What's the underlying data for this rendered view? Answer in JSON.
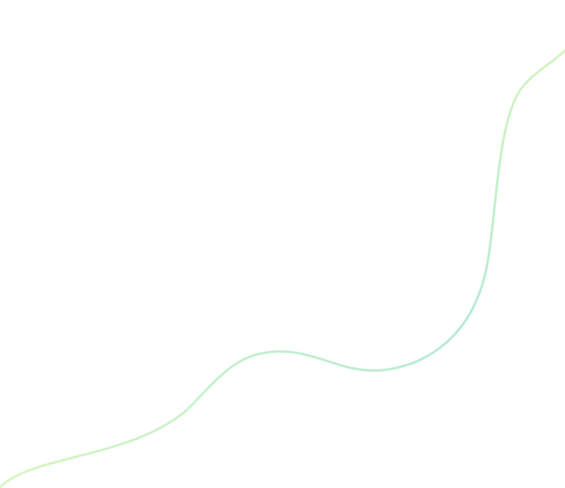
{
  "decoration": {
    "icon": "wavy-line",
    "colors": {
      "start": "#d9f6c2",
      "middle": "#b6ead6",
      "end": "#d6f6c0"
    }
  }
}
